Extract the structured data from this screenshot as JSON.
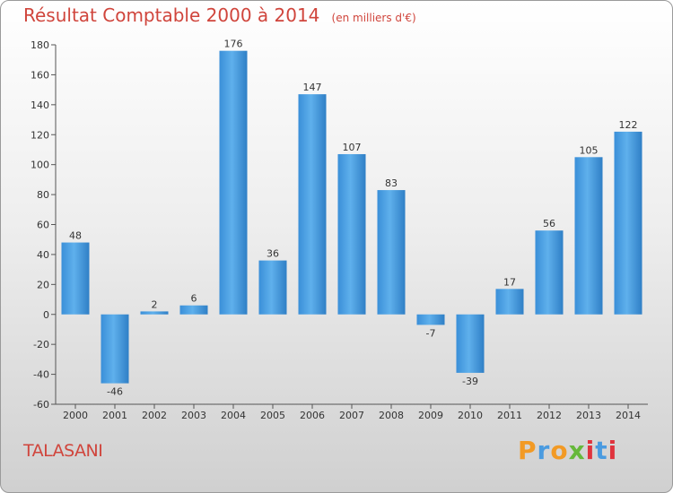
{
  "title": "Résultat Comptable 2000 à 2014",
  "unit_label": "(en milliers d'€)",
  "place": "TALASANI",
  "brand": {
    "letters": [
      "P",
      "r",
      "o",
      "x",
      "i",
      "t",
      "i"
    ],
    "colors": [
      "#f29a25",
      "#4a9be0",
      "#f29a25",
      "#66b83a",
      "#e0333d",
      "#4a9be0",
      "#e0333d"
    ]
  },
  "colors": {
    "bar": "#4a9fdf",
    "title": "#d0453c",
    "text": "#333333"
  },
  "chart_data": {
    "type": "bar",
    "title": "Résultat Comptable 2000 à 2014",
    "subtitle": "(en milliers d'€)",
    "xlabel": "",
    "ylabel": "",
    "categories": [
      "2000",
      "2001",
      "2002",
      "2003",
      "2004",
      "2005",
      "2006",
      "2007",
      "2008",
      "2009",
      "2010",
      "2011",
      "2012",
      "2013",
      "2014"
    ],
    "values": [
      48,
      -46,
      2,
      6,
      176,
      36,
      147,
      107,
      83,
      -7,
      -39,
      17,
      56,
      105,
      122
    ],
    "ylim": [
      -60,
      180
    ],
    "yticks": [
      -60,
      -40,
      -20,
      0,
      20,
      40,
      60,
      80,
      100,
      120,
      140,
      160,
      180
    ],
    "grid": false,
    "legend": "none"
  }
}
